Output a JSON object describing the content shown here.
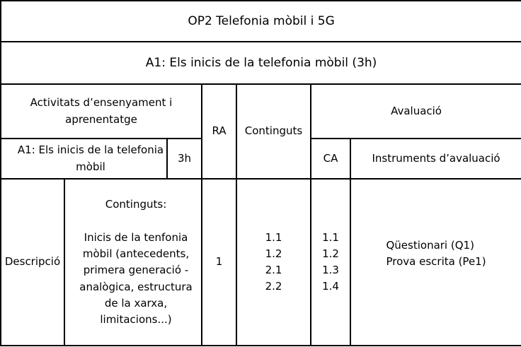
{
  "module_title": "OP2 Telefonia mòbil i 5G",
  "activity_title": "A1: Els inicis de la telefonia mòbil (3h)",
  "headers": {
    "activities": "Activitats d’ensenyament i aprenentatge",
    "ra": "RA",
    "contents": "Continguts",
    "assessment": "Avaluació",
    "ca": "CA",
    "instruments": "Instruments d’avaluació"
  },
  "activity_row": {
    "name": "A1: Els inicis de la telefonia mòbil",
    "hours": "3h"
  },
  "description": {
    "label": "Descripció",
    "contents_heading": "Continguts:",
    "contents_text": "Inicis de la tenfonia mòbil (antecedents, primera generació - analògica, estructura de la xarxa, limitacions...)",
    "ra": "1",
    "contents_codes": [
      "1.1",
      "1.2",
      "2.1",
      "2.2"
    ],
    "ca_codes": [
      "1.1",
      "1.2",
      "1.3",
      "1.4"
    ],
    "instruments": [
      "Qüestionari (Q1)",
      "Prova escrita (Pe1)"
    ]
  }
}
